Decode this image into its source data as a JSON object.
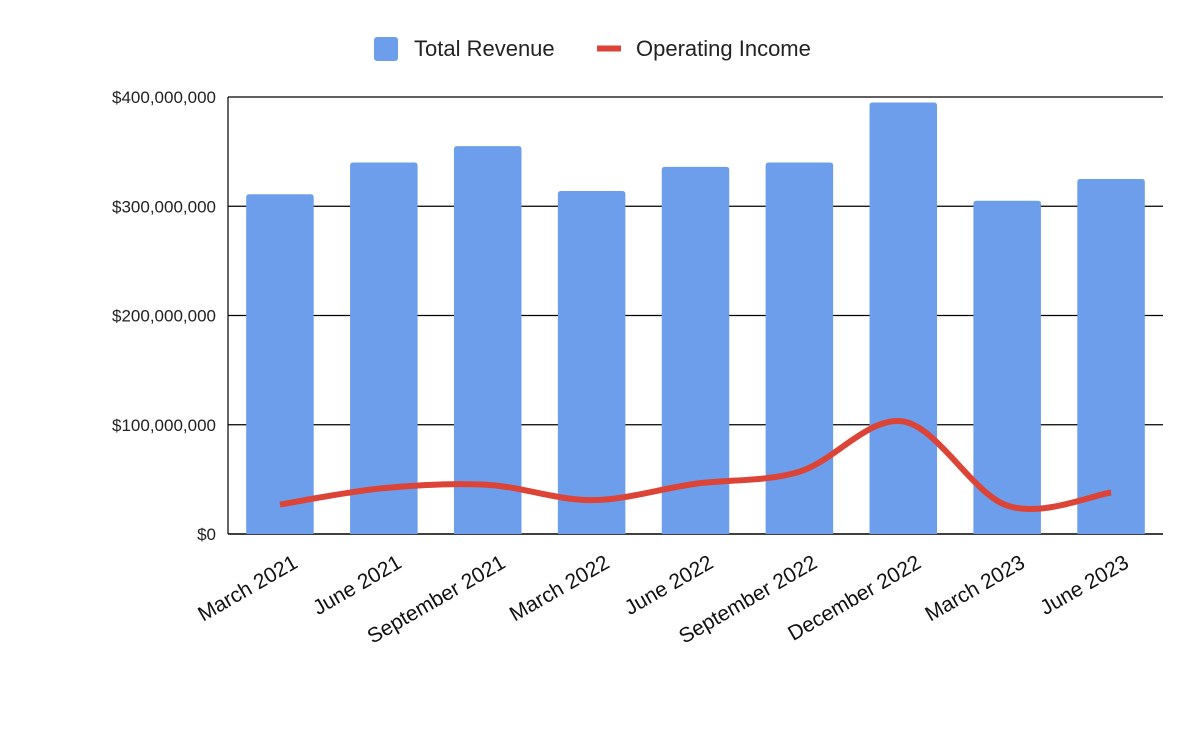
{
  "chart_data": {
    "type": "bar",
    "categories": [
      "March 2021",
      "June 2021",
      "September 2021",
      "March 2022",
      "June 2022",
      "September 2022",
      "December 2022",
      "March 2023",
      "June 2023"
    ],
    "series": [
      {
        "name": "Total Revenue",
        "type": "bar",
        "color": "#6d9eeb",
        "values": [
          311000000,
          340000000,
          355000000,
          314000000,
          336000000,
          340000000,
          395000000,
          305000000,
          325000000
        ]
      },
      {
        "name": "Operating Income",
        "type": "line",
        "color": "#db4437",
        "values": [
          27000000,
          42000000,
          45000000,
          31000000,
          46000000,
          57000000,
          103000000,
          26000000,
          38000000
        ]
      }
    ],
    "title": "",
    "xlabel": "",
    "ylabel": "",
    "ylim": [
      0,
      400000000
    ],
    "y_ticks": [
      0,
      100000000,
      200000000,
      300000000,
      400000000
    ],
    "y_tick_labels": [
      "$0",
      "$100,000,000",
      "$200,000,000",
      "$300,000,000",
      "$400,000,000"
    ],
    "grid": true,
    "legend_position": "top-center"
  }
}
